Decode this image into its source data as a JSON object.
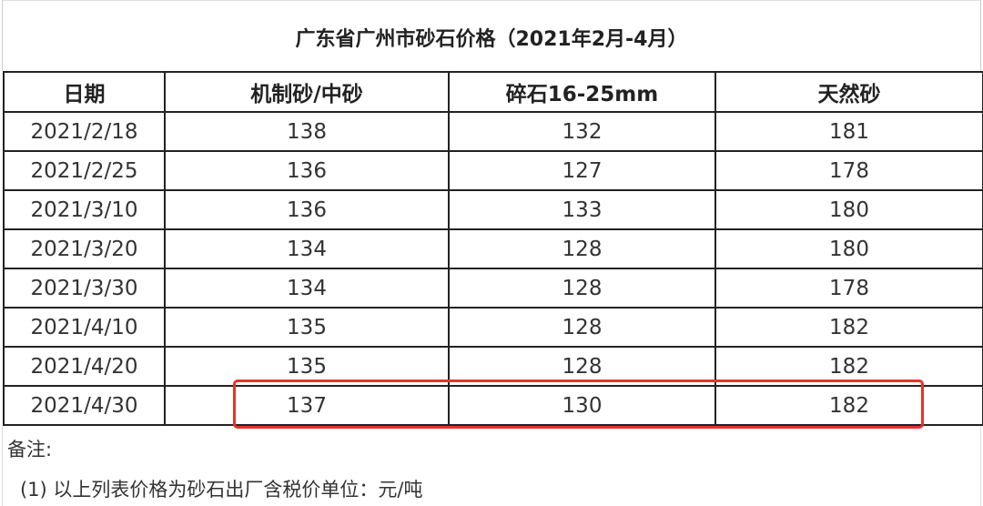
{
  "title": "广东省广州市砂石价格（2021年2月-4月）",
  "table": {
    "headers": [
      "日期",
      "机制砂/中砂",
      "碎石16-25mm",
      "天然砂"
    ],
    "rows": [
      [
        "2021/2/18",
        "138",
        "132",
        "181"
      ],
      [
        "2021/2/25",
        "136",
        "127",
        "178"
      ],
      [
        "2021/3/10",
        "136",
        "133",
        "180"
      ],
      [
        "2021/3/20",
        "134",
        "128",
        "180"
      ],
      [
        "2021/3/30",
        "134",
        "128",
        "178"
      ],
      [
        "2021/4/10",
        "135",
        "128",
        "182"
      ],
      [
        "2021/4/20",
        "135",
        "128",
        "182"
      ],
      [
        "2021/4/30",
        "137",
        "130",
        "182"
      ]
    ],
    "highlighted_row": "2021/4/30",
    "highlight_color": "#e8332a"
  },
  "notes": {
    "label": "备注:",
    "items": [
      "(1) 以上列表价格为砂石出厂含税价单位：元/吨"
    ]
  }
}
